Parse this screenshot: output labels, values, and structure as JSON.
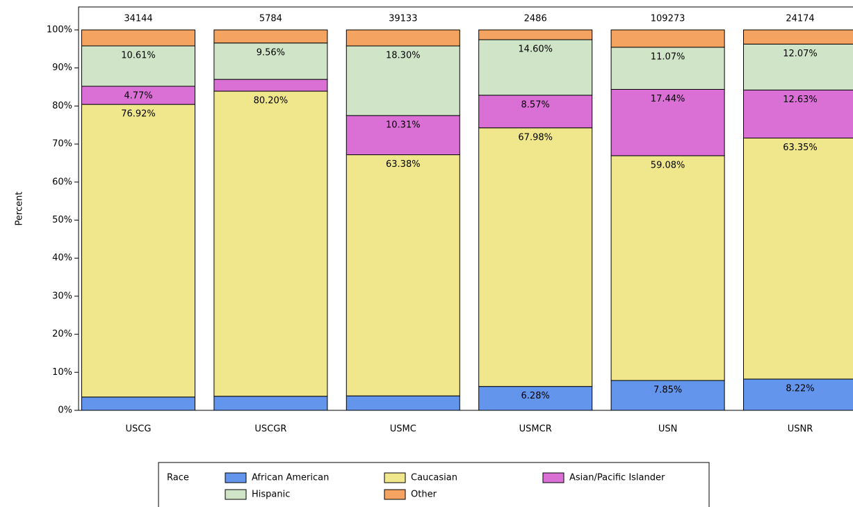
{
  "chart_data": {
    "type": "stacked_bar_100",
    "y_label": "Percent",
    "categories": [
      "USCG",
      "USCGR",
      "USMC",
      "USMCR",
      "USN",
      "USNR"
    ],
    "bar_totals": [
      34144,
      5784,
      39133,
      2486,
      109273,
      24174
    ],
    "series": [
      {
        "name": "African American",
        "color": "#6495ed",
        "values": [
          3.5,
          3.7,
          3.8,
          6.28,
          7.85,
          8.22
        ],
        "value_labels": [
          null,
          null,
          null,
          "6.28%",
          "7.85%",
          "8.22%"
        ]
      },
      {
        "name": "Caucasian",
        "color": "#f0e68c",
        "values": [
          76.92,
          80.2,
          63.38,
          67.98,
          59.08,
          63.35
        ],
        "value_labels": [
          "76.92%",
          "80.20%",
          "63.38%",
          "67.98%",
          "59.08%",
          "63.35%"
        ]
      },
      {
        "name": "Asian/Pacific Islander",
        "color": "#da70d6",
        "values": [
          4.77,
          3.1,
          10.31,
          8.57,
          17.44,
          12.63
        ],
        "value_labels": [
          "4.77%",
          null,
          "10.31%",
          "8.57%",
          "17.44%",
          "12.63%"
        ]
      },
      {
        "name": "Hispanic",
        "color": "#d0e5c8",
        "values": [
          10.61,
          9.56,
          18.3,
          14.6,
          11.07,
          12.07
        ],
        "value_labels": [
          "10.61%",
          "9.56%",
          "18.30%",
          "14.60%",
          "11.07%",
          "12.07%"
        ]
      },
      {
        "name": "Other",
        "color": "#f4a460",
        "values": [
          4.2,
          3.44,
          4.21,
          2.57,
          4.56,
          3.73
        ],
        "value_labels": [
          null,
          null,
          null,
          null,
          null,
          null
        ]
      }
    ],
    "ylim": [
      0,
      100
    ],
    "yticks": [
      {
        "value": 0,
        "label": "0%"
      },
      {
        "value": 10,
        "label": "10%"
      },
      {
        "value": 20,
        "label": "20%"
      },
      {
        "value": 30,
        "label": "30%"
      },
      {
        "value": 40,
        "label": "40%"
      },
      {
        "value": 50,
        "label": "50%"
      },
      {
        "value": 60,
        "label": "60%"
      },
      {
        "value": 70,
        "label": "70%"
      },
      {
        "value": 80,
        "label": "80%"
      },
      {
        "value": 90,
        "label": "90%"
      },
      {
        "value": 100,
        "label": "100%"
      }
    ],
    "legend_title": "Race",
    "legend_position": "bottom"
  }
}
